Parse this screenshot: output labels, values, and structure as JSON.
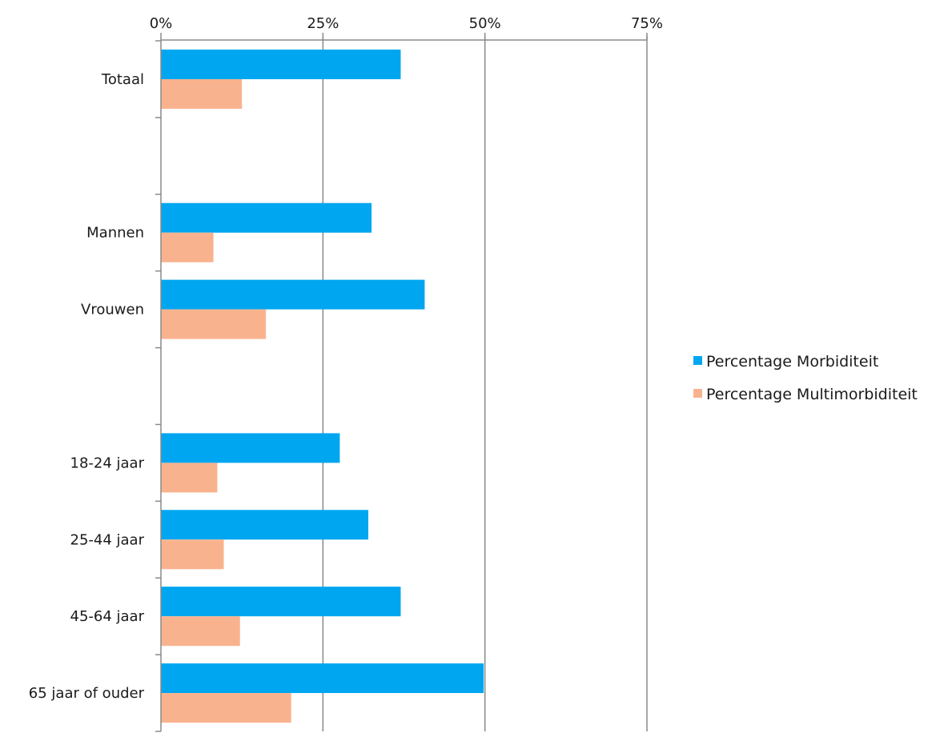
{
  "chart_data": {
    "type": "bar",
    "orientation": "horizontal",
    "x_ticks": [
      "0%",
      "25%",
      "50%",
      "75%"
    ],
    "x_tick_values": [
      0,
      25,
      50,
      75
    ],
    "xlim": [
      0,
      75
    ],
    "grid": true,
    "legend_position": "right",
    "categories": [
      "Totaal",
      "",
      "Mannen",
      "Vrouwen",
      "",
      "18-24 jaar",
      "25-44 jaar",
      "45-64 jaar",
      "65 jaar of ouder"
    ],
    "series": [
      {
        "name": "Percentage Morbiditeit",
        "color": "#00a6f0",
        "values": [
          37,
          null,
          32.5,
          40.7,
          null,
          27.6,
          32,
          37,
          49.8
        ]
      },
      {
        "name": "Percentage Multimorbiditeit",
        "color": "#f8b38e",
        "values": [
          12.5,
          null,
          8.1,
          16.2,
          null,
          8.7,
          9.7,
          12.2,
          20.1
        ]
      }
    ]
  }
}
